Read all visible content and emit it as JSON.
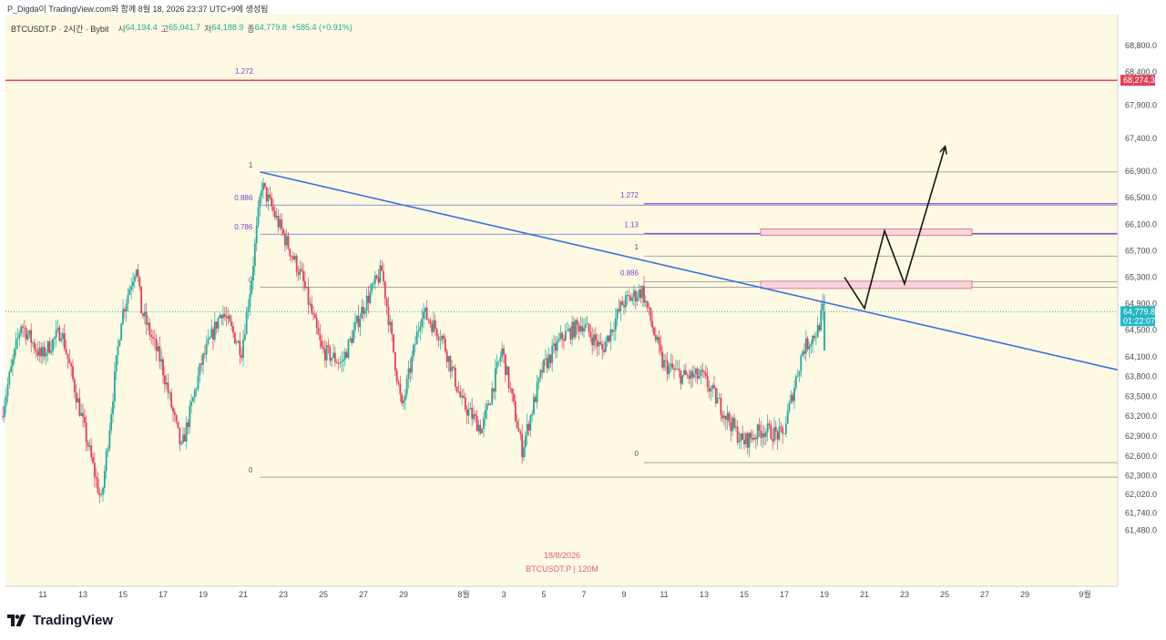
{
  "caption": "P_Digda이 TradingView.com와 함께 8월 18, 2026 23:37 UTC+9에 생성됨",
  "legend": {
    "symbol": "BTCUSDT.P · 2시간 · Bybit",
    "open_label": "시",
    "open": "64,194.4",
    "high_label": "고",
    "high": "65,041.7",
    "low_label": "저",
    "low": "64,188.9",
    "close_label": "종",
    "close": "64,779.8",
    "change": "+585.4 (+0.91%)"
  },
  "watermark": {
    "date": "18/8/2026",
    "symbol": "BTCUSDT.P | 120M"
  },
  "brand": {
    "name": "TradingView"
  },
  "colors": {
    "chart_bg": "#fdf9e3",
    "up": "#26a69a",
    "down": "#e0405a",
    "trendline": "#3a6fe0",
    "fib_line": "#8a8a8a",
    "fib_label": "#7b3fbf",
    "red_line": "#e0405a",
    "zone_fill": "#f7d5dd",
    "zone_border": "#e0607a",
    "price_badge": "#26b5c4",
    "level_badge": "#e0405a",
    "projection": "#111111"
  },
  "chart_data": {
    "type": "candlestick",
    "x_tick_labels": [
      "11",
      "13",
      "15",
      "17",
      "19",
      "21",
      "23",
      "25",
      "27",
      "29",
      "8월",
      "3",
      "5",
      "7",
      "9",
      "11",
      "13",
      "15",
      "17",
      "19",
      "21",
      "23",
      "25",
      "27",
      "29",
      "9월"
    ],
    "y_tick_labels": [
      "68,800.0",
      "68,400.0",
      "67,900.0",
      "67,400.0",
      "66,900.0",
      "66,500.0",
      "66,100.0",
      "65,700.0",
      "65,300.0",
      "64,900.0",
      "64,500.0",
      "64,100.0",
      "63,800.0",
      "63,500.0",
      "63,200.0",
      "62,900.0",
      "62,600.0",
      "62,300.0",
      "62,020.0",
      "61,740.0",
      "61,480.0"
    ],
    "y_ticks": [
      68800,
      68400,
      67900,
      67400,
      66900,
      66500,
      66100,
      65700,
      65300,
      64900,
      64500,
      64100,
      63800,
      63500,
      63200,
      62900,
      62600,
      62300,
      62020,
      61740,
      61480
    ],
    "last_price": {
      "value": 64779.8,
      "label": "64,779.8",
      "countdown": "01:22:07"
    },
    "horizontal_level": {
      "value": 68274.3,
      "label": "68,274.3",
      "fib_text": "1.272"
    },
    "fib_first": {
      "levels": [
        {
          "text": "1",
          "price": 66890
        },
        {
          "text": "0.886",
          "price": 66390
        },
        {
          "text": "0.786",
          "price": 65950
        },
        {
          "text": "0",
          "price": 65150
        },
        {
          "text": "0",
          "price": 62280
        }
      ]
    },
    "fib_second": {
      "levels": [
        {
          "text": "1.272",
          "price": 66410
        },
        {
          "text": "1.13",
          "price": 65960
        },
        {
          "text": "1",
          "price": 65620
        },
        {
          "text": "0.886",
          "price": 65230
        },
        {
          "text": "0",
          "price": 62500
        }
      ]
    },
    "trendline": {
      "start": {
        "date": "7/21 20:00",
        "price": 66890
      },
      "end": {
        "date": "9/2",
        "price": 63900
      }
    },
    "zones": [
      {
        "price_top": 66030,
        "price_bottom": 65930,
        "start_date": "8/15",
        "end_date": "8/26"
      },
      {
        "price_top": 65240,
        "price_bottom": 65130,
        "start_date": "8/15",
        "end_date": "8/26"
      }
    ],
    "projection_path": [
      {
        "date": "8/20",
        "price": 65300
      },
      {
        "date": "8/21",
        "price": 64830
      },
      {
        "date": "8/22",
        "price": 66000
      },
      {
        "date": "8/23",
        "price": 65200
      },
      {
        "date": "8/25",
        "price": 67250
      }
    ],
    "swing_path": [
      [
        "7/9",
        63200
      ],
      [
        "7/10",
        64600
      ],
      [
        "7/11",
        64100
      ],
      [
        "7/12",
        64500
      ],
      [
        "7/13",
        63200
      ],
      [
        "7/14",
        61900
      ],
      [
        "7/15",
        64700
      ],
      [
        "7/15 18:00",
        65500
      ],
      [
        "7/16",
        64800
      ],
      [
        "7/17",
        64000
      ],
      [
        "7/18",
        62700
      ],
      [
        "7/19",
        64000
      ],
      [
        "7/20",
        64800
      ],
      [
        "7/21",
        64200
      ],
      [
        "7/21 12:00",
        65300
      ],
      [
        "7/22",
        66700
      ],
      [
        "7/23",
        66000
      ],
      [
        "7/24",
        65300
      ],
      [
        "7/25",
        64200
      ],
      [
        "7/26",
        64000
      ],
      [
        "7/27",
        64800
      ],
      [
        "7/28",
        65400
      ],
      [
        "7/29",
        63300
      ],
      [
        "7/30",
        64800
      ],
      [
        "7/31",
        64400
      ],
      [
        "8/1",
        63400
      ],
      [
        "8/2",
        63000
      ],
      [
        "8/3",
        64200
      ],
      [
        "8/4",
        62700
      ],
      [
        "8/5",
        63900
      ],
      [
        "8/6",
        64400
      ],
      [
        "8/7",
        64600
      ],
      [
        "8/8",
        64200
      ],
      [
        "8/9",
        64900
      ],
      [
        "8/10",
        65100
      ],
      [
        "8/11",
        64000
      ],
      [
        "8/12",
        63800
      ],
      [
        "8/13",
        63800
      ],
      [
        "8/14",
        63300
      ],
      [
        "8/15",
        62800
      ],
      [
        "8/16",
        63000
      ],
      [
        "8/17",
        62900
      ],
      [
        "8/18",
        64200
      ],
      [
        "8/18 18:00",
        64500
      ],
      [
        "8/19",
        64800
      ]
    ]
  }
}
